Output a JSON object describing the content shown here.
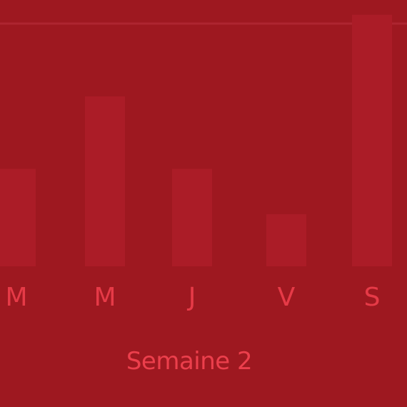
{
  "chart_data": {
    "type": "bar",
    "categories": [
      "M",
      "M",
      "J",
      "V",
      "S"
    ],
    "values": [
      4.3,
      7.5,
      4.3,
      2.3,
      11.1
    ],
    "ylim": [
      0,
      11.5
    ],
    "grid": true,
    "xlabel": "Semaine 2",
    "colors": {
      "background": "#9e1820",
      "bar": "#ab1c27",
      "text": "#e63a47"
    }
  }
}
